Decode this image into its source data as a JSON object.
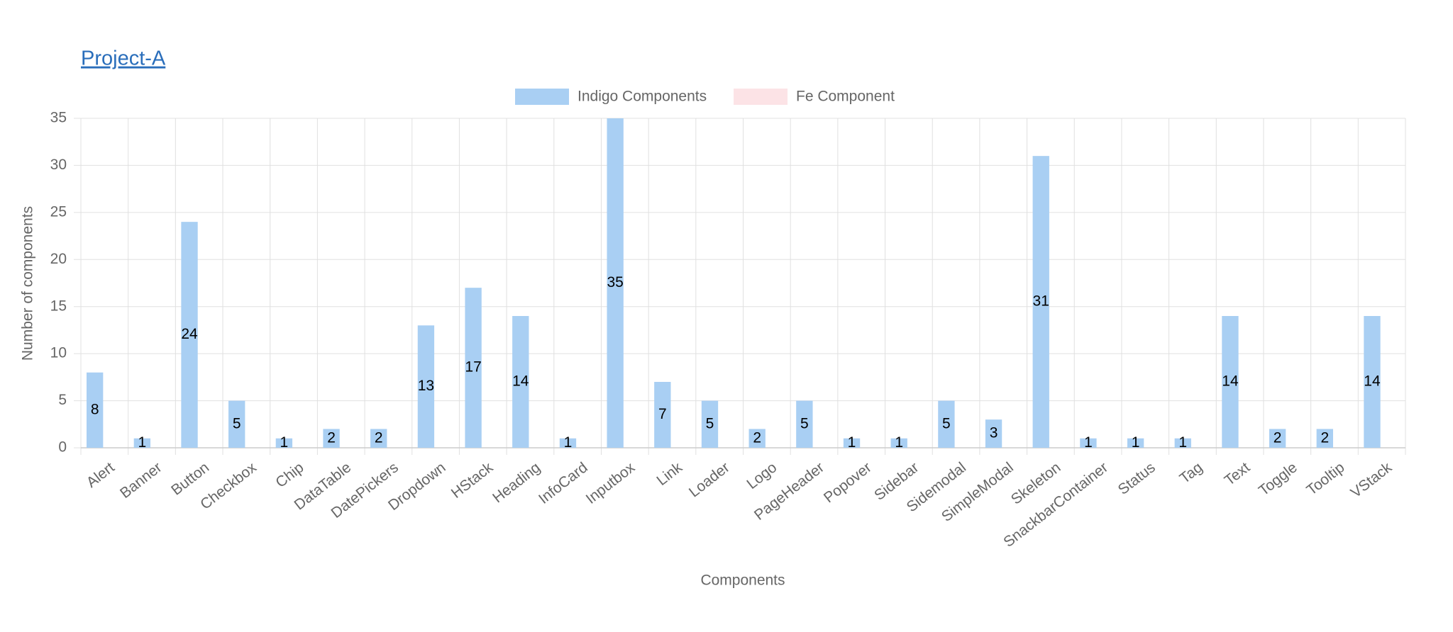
{
  "chart_data": {
    "type": "bar",
    "title": "Project-A",
    "x_label": "Components",
    "y_label": "Number of components",
    "categories": [
      "Alert",
      "Banner",
      "Button",
      "Checkbox",
      "Chip",
      "DataTable",
      "DatePickers",
      "Dropdown",
      "HStack",
      "Heading",
      "InfoCard",
      "Inputbox",
      "Link",
      "Loader",
      "Logo",
      "PageHeader",
      "Popover",
      "Sidebar",
      "Sidemodal",
      "SimpleModal",
      "Skeleton",
      "SnackbarContainer",
      "Status",
      "Tag",
      "Text",
      "Toggle",
      "Tooltip",
      "VStack"
    ],
    "series": [
      {
        "name": "Indigo Components",
        "color": "#a9cff3",
        "values": [
          8,
          1,
          24,
          5,
          1,
          2,
          2,
          13,
          17,
          14,
          1,
          35,
          7,
          5,
          2,
          5,
          1,
          1,
          5,
          3,
          31,
          1,
          1,
          1,
          14,
          2,
          2,
          14
        ]
      },
      {
        "name": "Fe Component",
        "color": "#fce3e6",
        "values": [
          null,
          null,
          null,
          null,
          null,
          null,
          null,
          null,
          null,
          null,
          null,
          null,
          null,
          null,
          null,
          null,
          null,
          null,
          null,
          null,
          null,
          null,
          null,
          null,
          null,
          null,
          null,
          null
        ]
      }
    ],
    "ylim": [
      0,
      35
    ],
    "yticks": [
      0,
      5,
      10,
      15,
      20,
      25,
      30,
      35
    ],
    "grid": true,
    "legend": "top"
  }
}
